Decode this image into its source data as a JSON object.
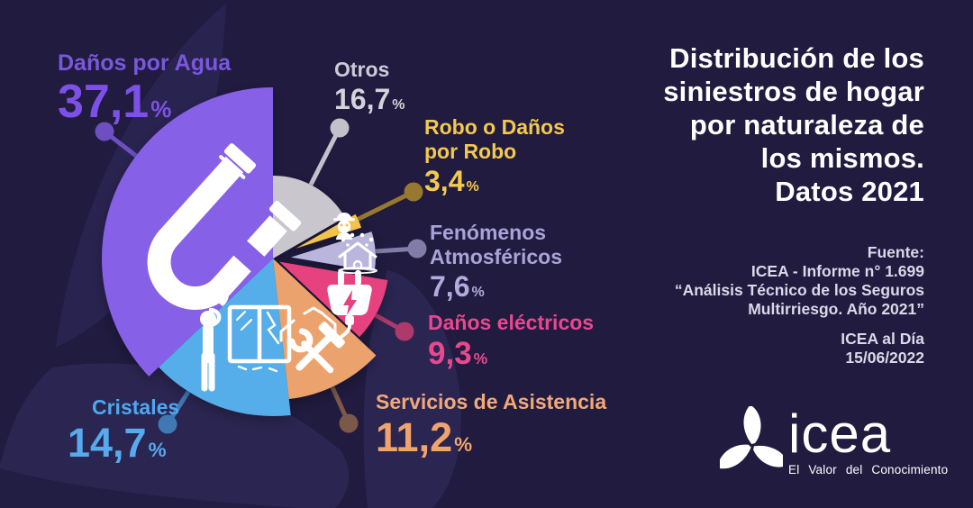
{
  "background_color": "#201b3f",
  "decor_color": "#2b2551",
  "title": {
    "lines": [
      "Distribución de los",
      "siniestros de hogar",
      "por naturaleza de",
      "los mismos.",
      "Datos 2021"
    ]
  },
  "source": {
    "heading": "Fuente:",
    "reference_lines": [
      "ICEA - Informe n° 1.699",
      "“Análisis Técnico de los Seguros",
      "Multirriesgo. Año 2021”"
    ],
    "publication": "ICEA al Día",
    "date": "15/06/2022"
  },
  "logo": {
    "word": "icea",
    "tagline": "El Valor del Conocimiento"
  },
  "chart_data": {
    "type": "pie",
    "title": "Distribución de los siniestros de hogar por naturaleza de los mismos. Datos 2021",
    "unit": "%",
    "percent_sign": "%",
    "total": 100,
    "start_angle_deg": 0,
    "direction": "clockwise",
    "layout": {
      "center": [
        303,
        287
      ]
    },
    "slices": [
      {
        "id": "otros",
        "label": "Otros",
        "value": 16.7,
        "value_label": "16,7",
        "color": "#c9c7cd",
        "label_color": "#cdcad6",
        "value_color": "#d4d2da",
        "leader": {
          "color": "#c3c1ca",
          "dot": [
            377,
            142
          ],
          "end": [
            345,
            205
          ]
        },
        "layout": {
          "radius": 92,
          "explode": 0
        }
      },
      {
        "id": "robo",
        "label": "Robo o Daños por Robo",
        "label_lines": [
          "Robo o Daños",
          "por Robo"
        ],
        "value": 3.4,
        "value_label": "3,4",
        "color": "#f3c24c",
        "label_color": "#f3c94e",
        "value_color": "#f3c94e",
        "leader": {
          "color": "#97782f",
          "dot": [
            459,
            213
          ],
          "end": [
            396,
            244
          ]
        },
        "layout": {
          "radius": 76,
          "explode": 28
        }
      },
      {
        "id": "fenomenos",
        "label": "Fenómenos Atmosféricos",
        "label_lines": [
          "Fenómenos",
          "Atmosféricos"
        ],
        "value": 7.6,
        "value_label": "7,6",
        "color": "#b9b5dc",
        "label_color": "#a9a4d8",
        "value_color": "#b1abde",
        "leader": {
          "color": "#827ca8",
          "dot": [
            463,
            276
          ],
          "end": [
            417,
            279
          ]
        },
        "layout": {
          "radius": 94,
          "explode": 20
        }
      },
      {
        "id": "electricos",
        "label": "Daños eléctricos",
        "value": 9.3,
        "value_label": "9,3",
        "color": "#e5437f",
        "label_color": "#e9488f",
        "value_color": "#e9488f",
        "leader": {
          "color": "#ad3a6a",
          "dot": [
            449,
            368
          ],
          "end": [
            417,
            350
          ]
        },
        "layout": {
          "radius": 122,
          "explode": 8
        }
      },
      {
        "id": "servicios",
        "label": "Servicios de Asistencia",
        "value": 11.2,
        "value_label": "11,2",
        "color": "#eca26d",
        "label_color": "#f3a877",
        "value_color": "#f0a46c",
        "leader": {
          "color": "#7b584a",
          "dot": [
            387,
            470
          ],
          "end": [
            369,
            430
          ]
        },
        "layout": {
          "radius": 157,
          "explode": 0
        }
      },
      {
        "id": "cristales",
        "label": "Cristales",
        "value": 14.7,
        "value_label": "14,7",
        "color": "#55ade9",
        "label_color": "#4fa8ee",
        "value_color": "#57aaee",
        "leader": {
          "color": "#4078b4",
          "dot": [
            186,
            471
          ],
          "end": [
            209,
            435
          ]
        },
        "layout": {
          "radius": 175,
          "explode": 0
        }
      },
      {
        "id": "agua",
        "label": "Daños por Agua",
        "value": 37.1,
        "value_label": "37,1",
        "color": "#8760e8",
        "label_color": "#7a58dc",
        "value_color": "#7d50e8",
        "leader": {
          "color": "#6d4fc2",
          "dot": [
            116,
            146
          ],
          "end": [
            151,
            173
          ]
        },
        "layout": {
          "radius": 190,
          "explode": 0
        }
      }
    ]
  }
}
